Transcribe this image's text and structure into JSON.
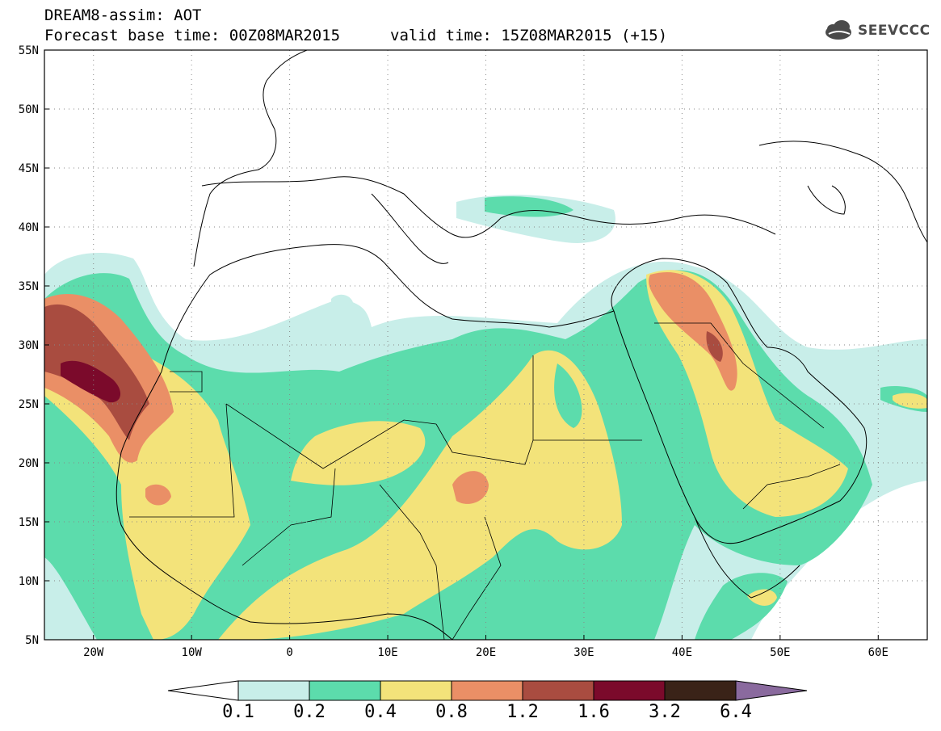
{
  "header": {
    "model_line": "DREAM8-assim: AOT",
    "base_time_line": "Forecast base time: 00Z08MAR2015",
    "valid_time_line": "valid time: 15Z08MAR2015 (+15)",
    "logo_text": "SEEVCCC"
  },
  "map": {
    "region": {
      "lon_min": -25,
      "lon_max": 65,
      "lat_min": 5,
      "lat_max": 55
    },
    "lat_labels": [
      "55N",
      "50N",
      "45N",
      "40N",
      "35N",
      "30N",
      "25N",
      "20N",
      "15N",
      "10N",
      "5N"
    ],
    "lon_labels": [
      "20W",
      "10W",
      "0",
      "10E",
      "20E",
      "30E",
      "40E",
      "50E",
      "60E"
    ],
    "grid": true
  },
  "legend": {
    "colors": {
      "c1": "#c8eee9",
      "c2": "#5cdcac",
      "c3": "#f3e37a",
      "c4": "#ea8f66",
      "c5": "#a94c40",
      "c6": "#7b0a2b",
      "c7": "#3a2318",
      "c8": "#8a6a9e"
    },
    "labels": [
      "0.1",
      "0.2",
      "0.4",
      "0.8",
      "1.2",
      "1.6",
      "3.2",
      "6.4"
    ]
  }
}
